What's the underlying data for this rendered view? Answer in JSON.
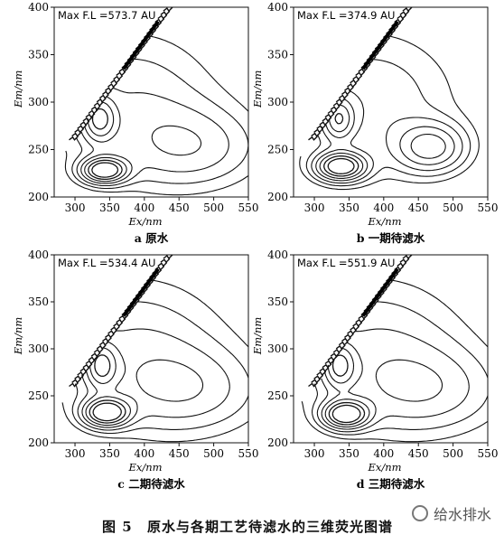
{
  "figure": {
    "number": "图 5",
    "title": "原水与各期工艺待滤水的三维荧光图谱"
  },
  "watermark": {
    "text": "给水排水",
    "icon": "wechat-logo-icon"
  },
  "chart_data": [
    {
      "type": "contour",
      "sublabel": "a 原水",
      "annotation": "Max F.L =573.7 AU",
      "xlabel": "Ex/nm",
      "ylabel": "Em/nm",
      "xlim": [
        270,
        550
      ],
      "ylim": [
        200,
        400
      ],
      "xticks": [
        300,
        350,
        400,
        450,
        500,
        550
      ],
      "yticks": [
        200,
        250,
        300,
        350,
        400
      ],
      "peaks": [
        {
          "ex": 342,
          "em": 228,
          "amp": 1.0,
          "sx": 22,
          "sy": 9
        },
        {
          "ex": 335,
          "em": 282,
          "amp": 0.55,
          "sx": 16,
          "sy": 16
        },
        {
          "ex": 470,
          "em": 252,
          "amp": 0.32,
          "sx": 70,
          "sy": 30
        },
        {
          "ex": 380,
          "em": 300,
          "amp": 0.28,
          "sx": 90,
          "sy": 55
        }
      ],
      "levels": [
        0.12,
        0.2,
        0.3,
        0.42,
        0.55,
        0.7,
        0.85
      ]
    },
    {
      "type": "contour",
      "sublabel": "b 一期待滤水",
      "annotation": "Max F.L =374.9 AU",
      "xlabel": "Ex/nm",
      "ylabel": "Em/nm",
      "xlim": [
        270,
        550
      ],
      "ylim": [
        200,
        400
      ],
      "xticks": [
        300,
        350,
        400,
        450,
        500,
        550
      ],
      "yticks": [
        200,
        250,
        300,
        350,
        400
      ],
      "peaks": [
        {
          "ex": 338,
          "em": 232,
          "amp": 1.0,
          "sx": 24,
          "sy": 10
        },
        {
          "ex": 335,
          "em": 282,
          "amp": 0.5,
          "sx": 15,
          "sy": 15
        },
        {
          "ex": 468,
          "em": 252,
          "amp": 0.55,
          "sx": 35,
          "sy": 18
        },
        {
          "ex": 380,
          "em": 300,
          "amp": 0.28,
          "sx": 90,
          "sy": 55
        }
      ],
      "levels": [
        0.12,
        0.2,
        0.3,
        0.42,
        0.55,
        0.7,
        0.85
      ]
    },
    {
      "type": "contour",
      "sublabel": "c 二期待滤水",
      "annotation": "Max F.L =534.4 AU",
      "xlabel": "Ex/nm",
      "ylabel": "Em/nm",
      "xlim": [
        270,
        550
      ],
      "ylim": [
        200,
        400
      ],
      "xticks": [
        300,
        350,
        400,
        450,
        500,
        550
      ],
      "yticks": [
        200,
        250,
        300,
        350,
        400
      ],
      "peaks": [
        {
          "ex": 345,
          "em": 232,
          "amp": 1.0,
          "sx": 22,
          "sy": 10
        },
        {
          "ex": 338,
          "em": 282,
          "amp": 0.52,
          "sx": 15,
          "sy": 16
        },
        {
          "ex": 465,
          "em": 255,
          "amp": 0.3,
          "sx": 75,
          "sy": 32
        },
        {
          "ex": 385,
          "em": 300,
          "amp": 0.3,
          "sx": 95,
          "sy": 55
        }
      ],
      "levels": [
        0.12,
        0.2,
        0.3,
        0.42,
        0.55,
        0.7,
        0.85
      ]
    },
    {
      "type": "contour",
      "sublabel": "d 三期待滤水",
      "annotation": "Max F.L =551.9 AU",
      "xlabel": "Ex/nm",
      "ylabel": "Em/nm",
      "xlim": [
        270,
        550
      ],
      "ylim": [
        200,
        400
      ],
      "xticks": [
        300,
        350,
        400,
        450,
        500,
        550
      ],
      "yticks": [
        200,
        250,
        300,
        350,
        400
      ],
      "peaks": [
        {
          "ex": 345,
          "em": 230,
          "amp": 1.0,
          "sx": 22,
          "sy": 10
        },
        {
          "ex": 336,
          "em": 282,
          "amp": 0.52,
          "sx": 15,
          "sy": 16
        },
        {
          "ex": 465,
          "em": 255,
          "amp": 0.3,
          "sx": 75,
          "sy": 32
        },
        {
          "ex": 385,
          "em": 300,
          "amp": 0.3,
          "sx": 95,
          "sy": 55
        }
      ],
      "levels": [
        0.12,
        0.2,
        0.3,
        0.42,
        0.55,
        0.7,
        0.85
      ]
    }
  ]
}
